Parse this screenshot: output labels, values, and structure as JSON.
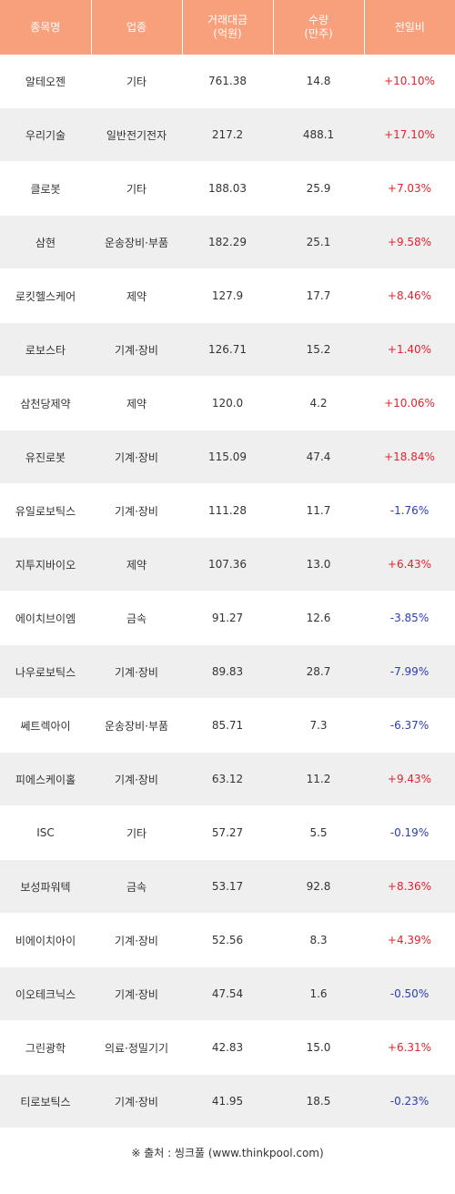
{
  "colors": {
    "header_bg": "#f8a07c",
    "up": "#e0242e",
    "down": "#2a3db5",
    "stripe": "#efefef"
  },
  "header": {
    "name": "종목명",
    "sector": "업종",
    "amount_line1": "거래대금",
    "amount_line2": "(억원)",
    "volume_line1": "수량",
    "volume_line2": "(만주)",
    "change": "전일비"
  },
  "rows": [
    {
      "name": "알테오젠",
      "sector": "기타",
      "amount": "761.38",
      "volume": "14.8",
      "change": "+10.10%",
      "dir": "up"
    },
    {
      "name": "우리기술",
      "sector": "일반전기전자",
      "amount": "217.2",
      "volume": "488.1",
      "change": "+17.10%",
      "dir": "up"
    },
    {
      "name": "클로봇",
      "sector": "기타",
      "amount": "188.03",
      "volume": "25.9",
      "change": "+7.03%",
      "dir": "up"
    },
    {
      "name": "삼현",
      "sector": "운송장비·부품",
      "amount": "182.29",
      "volume": "25.1",
      "change": "+9.58%",
      "dir": "up"
    },
    {
      "name": "로킷헬스케어",
      "sector": "제약",
      "amount": "127.9",
      "volume": "17.7",
      "change": "+8.46%",
      "dir": "up"
    },
    {
      "name": "로보스타",
      "sector": "기계·장비",
      "amount": "126.71",
      "volume": "15.2",
      "change": "+1.40%",
      "dir": "up"
    },
    {
      "name": "삼천당제약",
      "sector": "제약",
      "amount": "120.0",
      "volume": "4.2",
      "change": "+10.06%",
      "dir": "up"
    },
    {
      "name": "유진로봇",
      "sector": "기계·장비",
      "amount": "115.09",
      "volume": "47.4",
      "change": "+18.84%",
      "dir": "up"
    },
    {
      "name": "유일로보틱스",
      "sector": "기계·장비",
      "amount": "111.28",
      "volume": "11.7",
      "change": "-1.76%",
      "dir": "down"
    },
    {
      "name": "지투지바이오",
      "sector": "제약",
      "amount": "107.36",
      "volume": "13.0",
      "change": "+6.43%",
      "dir": "up"
    },
    {
      "name": "에이치브이엠",
      "sector": "금속",
      "amount": "91.27",
      "volume": "12.6",
      "change": "-3.85%",
      "dir": "down"
    },
    {
      "name": "나우로보틱스",
      "sector": "기계·장비",
      "amount": "89.83",
      "volume": "28.7",
      "change": "-7.99%",
      "dir": "down"
    },
    {
      "name": "쎄트렉아이",
      "sector": "운송장비·부품",
      "amount": "85.71",
      "volume": "7.3",
      "change": "-6.37%",
      "dir": "down"
    },
    {
      "name": "피에스케이홀",
      "sector": "기계·장비",
      "amount": "63.12",
      "volume": "11.2",
      "change": "+9.43%",
      "dir": "up"
    },
    {
      "name": "ISC",
      "sector": "기타",
      "amount": "57.27",
      "volume": "5.5",
      "change": "-0.19%",
      "dir": "down"
    },
    {
      "name": "보성파워텍",
      "sector": "금속",
      "amount": "53.17",
      "volume": "92.8",
      "change": "+8.36%",
      "dir": "up"
    },
    {
      "name": "비에이치아이",
      "sector": "기계·장비",
      "amount": "52.56",
      "volume": "8.3",
      "change": "+4.39%",
      "dir": "up"
    },
    {
      "name": "이오테크닉스",
      "sector": "기계·장비",
      "amount": "47.54",
      "volume": "1.6",
      "change": "-0.50%",
      "dir": "down"
    },
    {
      "name": "그린광학",
      "sector": "의료·정밀기기",
      "amount": "42.83",
      "volume": "15.0",
      "change": "+6.31%",
      "dir": "up"
    },
    {
      "name": "티로보틱스",
      "sector": "기계·장비",
      "amount": "41.95",
      "volume": "18.5",
      "change": "-0.23%",
      "dir": "down"
    }
  ],
  "source": "※ 출처 : 씽크풀 (www.thinkpool.com)"
}
